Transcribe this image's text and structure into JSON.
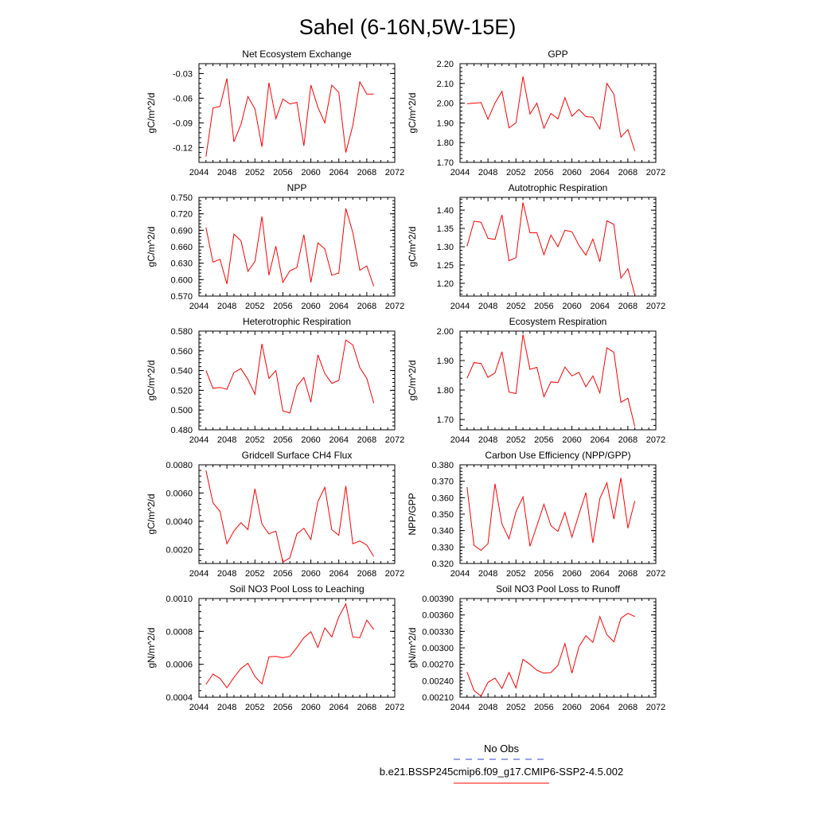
{
  "figure": {
    "title": "Sahel (6-16N,5W-15E)"
  },
  "legend": {
    "entries": [
      {
        "label": "No Obs",
        "color": "#3344dd",
        "style": "dashed"
      },
      {
        "label": "b.e21.BSSP245cmip6.f09_g17.CMIP6-SSP2-4.5.002",
        "color": "#ff0000",
        "style": "solid"
      }
    ]
  },
  "chart_data": [
    {
      "type": "line",
      "title": "Net Ecosystem Exchange",
      "xlabel": "",
      "ylabel": "gC/m^2/d",
      "xlim": [
        2044,
        2072
      ],
      "xticks": [
        2044,
        2048,
        2052,
        2056,
        2060,
        2064,
        2068,
        2072
      ],
      "ylim": [
        -0.138,
        -0.018
      ],
      "yticks": [
        -0.12,
        -0.09,
        -0.06,
        -0.03
      ],
      "ytick_labels": [
        "-0.12",
        "-0.09",
        "-0.06",
        "-0.03"
      ],
      "series": [
        {
          "name": "b.e21.BSSP245cmip6.f09_g17.CMIP6-SSP2-4.5.002",
          "color": "#ff0000",
          "x": [
            2045,
            2046,
            2047,
            2048,
            2049,
            2050,
            2051,
            2052,
            2053,
            2054,
            2055,
            2056,
            2057,
            2058,
            2059,
            2060,
            2061,
            2062,
            2063,
            2064,
            2065,
            2066,
            2067,
            2068,
            2069
          ],
          "y": [
            -0.131,
            -0.072,
            -0.07,
            -0.036,
            -0.113,
            -0.092,
            -0.058,
            -0.073,
            -0.119,
            -0.041,
            -0.085,
            -0.061,
            -0.067,
            -0.065,
            -0.118,
            -0.044,
            -0.071,
            -0.09,
            -0.044,
            -0.053,
            -0.126,
            -0.093,
            -0.04,
            -0.055,
            -0.055
          ]
        }
      ]
    },
    {
      "type": "line",
      "title": "GPP",
      "xlabel": "",
      "ylabel": "gC/m^2/d",
      "xlim": [
        2044,
        2072
      ],
      "xticks": [
        2044,
        2048,
        2052,
        2056,
        2060,
        2064,
        2068,
        2072
      ],
      "ylim": [
        1.7,
        2.2
      ],
      "yticks": [
        1.7,
        1.8,
        1.9,
        2.0,
        2.1,
        2.2
      ],
      "ytick_labels": [
        "1.70",
        "1.80",
        "1.90",
        "2.00",
        "2.10",
        "2.20"
      ],
      "series": [
        {
          "name": "b.e21.BSSP245cmip6.f09_g17.CMIP6-SSP2-4.5.002",
          "color": "#ff0000",
          "x": [
            2045,
            2046,
            2047,
            2048,
            2049,
            2050,
            2051,
            2052,
            2053,
            2054,
            2055,
            2056,
            2057,
            2058,
            2059,
            2060,
            2061,
            2062,
            2063,
            2064,
            2065,
            2066,
            2067,
            2068,
            2069
          ],
          "y": [
            1.997,
            2.0,
            2.003,
            1.918,
            2.0,
            2.06,
            1.875,
            1.9,
            2.135,
            1.945,
            2.0,
            1.873,
            1.948,
            1.92,
            2.028,
            1.934,
            1.968,
            1.932,
            1.929,
            1.869,
            2.1,
            2.045,
            1.828,
            1.866,
            1.758
          ]
        }
      ]
    },
    {
      "type": "line",
      "title": "NPP",
      "xlabel": "",
      "ylabel": "gC/m^2/d",
      "xlim": [
        2044,
        2072
      ],
      "xticks": [
        2044,
        2048,
        2052,
        2056,
        2060,
        2064,
        2068,
        2072
      ],
      "ylim": [
        0.57,
        0.75
      ],
      "yticks": [
        0.57,
        0.6,
        0.63,
        0.66,
        0.69,
        0.72,
        0.75
      ],
      "ytick_labels": [
        "0.570",
        "0.600",
        "0.630",
        "0.660",
        "0.690",
        "0.720",
        "0.750"
      ],
      "series": [
        {
          "name": "b.e21.BSSP245cmip6.f09_g17.CMIP6-SSP2-4.5.002",
          "color": "#ff0000",
          "x": [
            2045,
            2046,
            2047,
            2048,
            2049,
            2050,
            2051,
            2052,
            2053,
            2054,
            2055,
            2056,
            2057,
            2058,
            2059,
            2060,
            2061,
            2062,
            2063,
            2064,
            2065,
            2066,
            2067,
            2068,
            2069
          ],
          "y": [
            0.695,
            0.632,
            0.637,
            0.592,
            0.683,
            0.671,
            0.615,
            0.633,
            0.715,
            0.608,
            0.661,
            0.595,
            0.616,
            0.622,
            0.682,
            0.595,
            0.667,
            0.656,
            0.608,
            0.612,
            0.73,
            0.686,
            0.617,
            0.625,
            0.588
          ]
        }
      ]
    },
    {
      "type": "line",
      "title": "Autotrophic Respiration",
      "xlabel": "",
      "ylabel": "gC/m^2/d",
      "xlim": [
        2044,
        2072
      ],
      "xticks": [
        2044,
        2048,
        2052,
        2056,
        2060,
        2064,
        2068,
        2072
      ],
      "ylim": [
        1.165,
        1.435
      ],
      "yticks": [
        1.2,
        1.25,
        1.3,
        1.35,
        1.4
      ],
      "ytick_labels": [
        "1.20",
        "1.25",
        "1.30",
        "1.35",
        "1.40"
      ],
      "series": [
        {
          "name": "b.e21.BSSP245cmip6.f09_g17.CMIP6-SSP2-4.5.002",
          "color": "#ff0000",
          "x": [
            2045,
            2046,
            2047,
            2048,
            2049,
            2050,
            2051,
            2052,
            2053,
            2054,
            2055,
            2056,
            2057,
            2058,
            2059,
            2060,
            2061,
            2062,
            2063,
            2064,
            2065,
            2066,
            2067,
            2068,
            2069
          ],
          "y": [
            1.301,
            1.37,
            1.367,
            1.323,
            1.32,
            1.387,
            1.262,
            1.27,
            1.421,
            1.338,
            1.338,
            1.278,
            1.332,
            1.3,
            1.345,
            1.341,
            1.304,
            1.277,
            1.321,
            1.259,
            1.371,
            1.361,
            1.214,
            1.24,
            1.168
          ]
        }
      ]
    },
    {
      "type": "line",
      "title": "Heterotrophic Respiration",
      "xlabel": "",
      "ylabel": "gC/m^2/d",
      "xlim": [
        2044,
        2072
      ],
      "xticks": [
        2044,
        2048,
        2052,
        2056,
        2060,
        2064,
        2068,
        2072
      ],
      "ylim": [
        0.48,
        0.58
      ],
      "yticks": [
        0.48,
        0.5,
        0.52,
        0.54,
        0.56,
        0.58
      ],
      "ytick_labels": [
        "0.480",
        "0.500",
        "0.520",
        "0.540",
        "0.560",
        "0.580"
      ],
      "series": [
        {
          "name": "b.e21.BSSP245cmip6.f09_g17.CMIP6-SSP2-4.5.002",
          "color": "#ff0000",
          "x": [
            2045,
            2046,
            2047,
            2048,
            2049,
            2050,
            2051,
            2052,
            2053,
            2054,
            2055,
            2056,
            2057,
            2058,
            2059,
            2060,
            2061,
            2062,
            2063,
            2064,
            2065,
            2066,
            2067,
            2068,
            2069
          ],
          "y": [
            0.54,
            0.522,
            0.523,
            0.521,
            0.538,
            0.542,
            0.531,
            0.516,
            0.567,
            0.532,
            0.54,
            0.499,
            0.497,
            0.524,
            0.533,
            0.508,
            0.556,
            0.537,
            0.527,
            0.53,
            0.571,
            0.566,
            0.543,
            0.532,
            0.507
          ]
        }
      ]
    },
    {
      "type": "line",
      "title": "Ecosystem Respiration",
      "xlabel": "",
      "ylabel": "gC/m^2/d",
      "xlim": [
        2044,
        2072
      ],
      "xticks": [
        2044,
        2048,
        2052,
        2056,
        2060,
        2064,
        2068,
        2072
      ],
      "ylim": [
        1.665,
        2.0
      ],
      "yticks": [
        1.7,
        1.8,
        1.9,
        2.0
      ],
      "ytick_labels": [
        "1.70",
        "1.80",
        "1.90",
        "2.00"
      ],
      "series": [
        {
          "name": "b.e21.BSSP245cmip6.f09_g17.CMIP6-SSP2-4.5.002",
          "color": "#ff0000",
          "x": [
            2045,
            2046,
            2047,
            2048,
            2049,
            2050,
            2051,
            2052,
            2053,
            2054,
            2055,
            2056,
            2057,
            2058,
            2059,
            2060,
            2061,
            2062,
            2063,
            2064,
            2065,
            2066,
            2067,
            2068,
            2069
          ],
          "y": [
            1.84,
            1.893,
            1.89,
            1.843,
            1.858,
            1.93,
            1.793,
            1.788,
            1.988,
            1.87,
            1.877,
            1.777,
            1.828,
            1.825,
            1.878,
            1.848,
            1.86,
            1.811,
            1.848,
            1.79,
            1.943,
            1.928,
            1.758,
            1.772,
            1.676
          ]
        }
      ]
    },
    {
      "type": "line",
      "title": "Gridcell Surface CH4 Flux",
      "xlabel": "",
      "ylabel": "gC/m^2/d",
      "xlim": [
        2044,
        2072
      ],
      "xticks": [
        2044,
        2048,
        2052,
        2056,
        2060,
        2064,
        2068,
        2072
      ],
      "ylim": [
        0.001,
        0.008
      ],
      "yticks": [
        0.002,
        0.004,
        0.006,
        0.008
      ],
      "ytick_labels": [
        "0.0020",
        "0.0040",
        "0.0060",
        "0.0080"
      ],
      "series": [
        {
          "name": "b.e21.BSSP245cmip6.f09_g17.CMIP6-SSP2-4.5.002",
          "color": "#ff0000",
          "x": [
            2045,
            2046,
            2047,
            2048,
            2049,
            2050,
            2051,
            2052,
            2053,
            2054,
            2055,
            2056,
            2057,
            2058,
            2059,
            2060,
            2061,
            2062,
            2063,
            2064,
            2065,
            2066,
            2067,
            2068,
            2069
          ],
          "y": [
            0.0076,
            0.0053,
            0.0047,
            0.0024,
            0.0033,
            0.0039,
            0.0034,
            0.0063,
            0.0038,
            0.0031,
            0.0033,
            0.0011,
            0.0014,
            0.0031,
            0.0035,
            0.0027,
            0.0054,
            0.0064,
            0.0034,
            0.003,
            0.0065,
            0.0024,
            0.0026,
            0.0023,
            0.0015
          ]
        }
      ]
    },
    {
      "type": "line",
      "title": "Carbon Use Efficiency (NPP/GPP)",
      "xlabel": "",
      "ylabel": "NPP/GPP",
      "xlim": [
        2044,
        2072
      ],
      "xticks": [
        2044,
        2048,
        2052,
        2056,
        2060,
        2064,
        2068,
        2072
      ],
      "ylim": [
        0.32,
        0.38
      ],
      "yticks": [
        0.32,
        0.33,
        0.34,
        0.35,
        0.36,
        0.37,
        0.38
      ],
      "ytick_labels": [
        "0.320",
        "0.330",
        "0.340",
        "0.350",
        "0.360",
        "0.370",
        "0.380"
      ],
      "series": [
        {
          "name": "b.e21.BSSP245cmip6.f09_g17.CMIP6-SSP2-4.5.002",
          "color": "#ff0000",
          "x": [
            2045,
            2046,
            2047,
            2048,
            2049,
            2050,
            2051,
            2052,
            2053,
            2054,
            2055,
            2056,
            2057,
            2058,
            2059,
            2060,
            2061,
            2062,
            2063,
            2064,
            2065,
            2066,
            2067,
            2068,
            2069
          ],
          "y": [
            0.3665,
            0.331,
            0.328,
            0.332,
            0.3685,
            0.344,
            0.335,
            0.3515,
            0.3605,
            0.3305,
            0.343,
            0.356,
            0.343,
            0.3395,
            0.351,
            0.336,
            0.35,
            0.363,
            0.3325,
            0.3595,
            0.369,
            0.347,
            0.372,
            0.3415,
            0.358
          ]
        }
      ]
    },
    {
      "type": "line",
      "title": "Soil NO3 Pool Loss to Leaching",
      "xlabel": "",
      "ylabel": "gN/m^2/d",
      "xlim": [
        2044,
        2072
      ],
      "xticks": [
        2044,
        2048,
        2052,
        2056,
        2060,
        2064,
        2068,
        2072
      ],
      "ylim": [
        0.0004,
        0.001
      ],
      "yticks": [
        0.0004,
        0.0006,
        0.0008,
        0.001
      ],
      "ytick_labels": [
        "0.0004",
        "0.0006",
        "0.0008",
        "0.0010"
      ],
      "series": [
        {
          "name": "b.e21.BSSP245cmip6.f09_g17.CMIP6-SSP2-4.5.002",
          "color": "#ff0000",
          "x": [
            2045,
            2046,
            2047,
            2048,
            2049,
            2050,
            2051,
            2052,
            2053,
            2054,
            2055,
            2056,
            2057,
            2058,
            2059,
            2060,
            2061,
            2062,
            2063,
            2064,
            2065,
            2066,
            2067,
            2068,
            2069
          ],
          "y": [
            0.000478,
            0.000541,
            0.000514,
            0.000458,
            0.00052,
            0.000574,
            0.000606,
            0.000526,
            0.000481,
            0.000646,
            0.000648,
            0.00064,
            0.000648,
            0.000702,
            0.000762,
            0.000798,
            0.000703,
            0.000821,
            0.000767,
            0.000889,
            0.000967,
            0.000767,
            0.000762,
            0.000869,
            0.000812
          ]
        }
      ]
    },
    {
      "type": "line",
      "title": "Soil NO3 Pool Loss to Runoff",
      "xlabel": "",
      "ylabel": "gN/m^2/d",
      "xlim": [
        2044,
        2072
      ],
      "xticks": [
        2044,
        2048,
        2052,
        2056,
        2060,
        2064,
        2068,
        2072
      ],
      "ylim": [
        0.0021,
        0.0039
      ],
      "yticks": [
        0.0021,
        0.0024,
        0.0027,
        0.003,
        0.0033,
        0.0036,
        0.0039
      ],
      "ytick_labels": [
        "0.00210",
        "0.00240",
        "0.00270",
        "0.00300",
        "0.00330",
        "0.00360",
        "0.00390"
      ],
      "series": [
        {
          "name": "b.e21.BSSP245cmip6.f09_g17.CMIP6-SSP2-4.5.002",
          "color": "#ff0000",
          "x": [
            2045,
            2046,
            2047,
            2048,
            2049,
            2050,
            2051,
            2052,
            2053,
            2054,
            2055,
            2056,
            2057,
            2058,
            2059,
            2060,
            2061,
            2062,
            2063,
            2064,
            2065,
            2066,
            2067,
            2068,
            2069
          ],
          "y": [
            0.00256,
            0.00222,
            0.00212,
            0.00237,
            0.00245,
            0.00226,
            0.00255,
            0.00227,
            0.00279,
            0.0027,
            0.00259,
            0.00254,
            0.00255,
            0.00268,
            0.00308,
            0.00254,
            0.00302,
            0.00322,
            0.0031,
            0.00357,
            0.00324,
            0.00311,
            0.00354,
            0.00363,
            0.00357
          ]
        }
      ]
    }
  ]
}
